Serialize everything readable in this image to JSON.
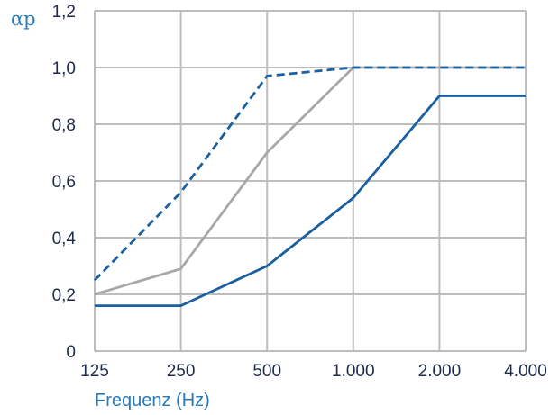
{
  "chart_data": {
    "type": "line",
    "ylabel": "αp",
    "xlabel": "Frequenz (Hz)",
    "categories": [
      "125",
      "250",
      "500",
      "1.000",
      "2.000",
      "4.000"
    ],
    "yticks": [
      "0",
      "0,2",
      "0,4",
      "0,6",
      "0,8",
      "1,0",
      "1,2"
    ],
    "ylim": [
      0,
      1.2
    ],
    "grid": true,
    "series": [
      {
        "values": [
          0.25,
          0.56,
          0.97,
          1.0,
          1.0,
          1.0
        ],
        "color": "#1a5fa0",
        "style": "dashed"
      },
      {
        "values": [
          0.2,
          0.29,
          0.7,
          1.0,
          1.0,
          1.0
        ],
        "color": "#a8a8a8",
        "style": "solid"
      },
      {
        "values": [
          0.16,
          0.16,
          0.3,
          0.54,
          0.9,
          0.9
        ],
        "color": "#1a5fa0",
        "style": "solid"
      }
    ],
    "colors": {
      "grid": "#bdbdbd",
      "axis_text": "#1e2a4a",
      "title_text": "#2a79b8"
    }
  }
}
